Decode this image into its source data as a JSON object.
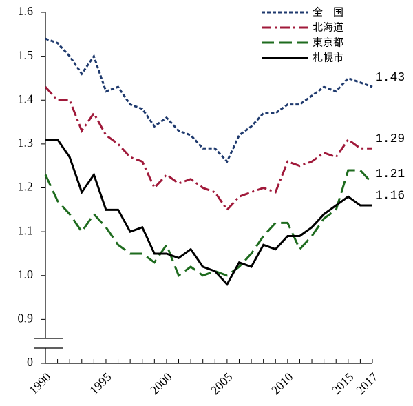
{
  "chart_data": {
    "type": "line",
    "x": [
      1990,
      1991,
      1992,
      1993,
      1994,
      1995,
      1996,
      1997,
      1998,
      1999,
      2000,
      2001,
      2002,
      2003,
      2004,
      2005,
      2006,
      2007,
      2008,
      2009,
      2010,
      2011,
      2012,
      2013,
      2014,
      2015,
      2016,
      2017
    ],
    "series": [
      {
        "name": "全　国",
        "color": "#1f3a6e",
        "linestyle": "dotted",
        "values": [
          1.54,
          1.53,
          1.5,
          1.46,
          1.5,
          1.42,
          1.43,
          1.39,
          1.38,
          1.34,
          1.36,
          1.33,
          1.32,
          1.29,
          1.29,
          1.26,
          1.32,
          1.34,
          1.37,
          1.37,
          1.39,
          1.39,
          1.41,
          1.43,
          1.42,
          1.45,
          1.44,
          1.43
        ]
      },
      {
        "name": "北海道",
        "color": "#a0193a",
        "linestyle": "dashdot",
        "values": [
          1.43,
          1.4,
          1.4,
          1.33,
          1.37,
          1.32,
          1.3,
          1.27,
          1.26,
          1.2,
          1.23,
          1.21,
          1.22,
          1.2,
          1.19,
          1.15,
          1.18,
          1.19,
          1.2,
          1.19,
          1.26,
          1.25,
          1.26,
          1.28,
          1.27,
          1.31,
          1.29,
          1.29
        ]
      },
      {
        "name": "東京都",
        "color": "#1e6b1e",
        "linestyle": "dashed",
        "values": [
          1.23,
          1.17,
          1.14,
          1.1,
          1.14,
          1.11,
          1.07,
          1.05,
          1.05,
          1.03,
          1.07,
          1.0,
          1.02,
          1.0,
          1.01,
          1.0,
          1.02,
          1.05,
          1.09,
          1.12,
          1.12,
          1.06,
          1.09,
          1.13,
          1.15,
          1.24,
          1.24,
          1.21
        ]
      },
      {
        "name": "札幌市",
        "color": "#000000",
        "linestyle": "solid",
        "values": [
          1.31,
          1.31,
          1.27,
          1.19,
          1.23,
          1.15,
          1.15,
          1.1,
          1.11,
          1.05,
          1.05,
          1.04,
          1.06,
          1.02,
          1.01,
          0.98,
          1.03,
          1.02,
          1.07,
          1.06,
          1.09,
          1.09,
          1.11,
          1.14,
          1.16,
          1.18,
          1.16,
          1.16
        ]
      }
    ],
    "xlim": [
      1990,
      2017
    ],
    "xticks": [
      1990,
      1995,
      2000,
      2005,
      2010,
      2015,
      2017
    ],
    "ylim": [
      0,
      1.6
    ],
    "axis_break": [
      0,
      0.8
    ],
    "yticks": [
      0,
      {
        "value": 0.9,
        "label": "0.9"
      },
      {
        "value": 1.0,
        "label": "1.0"
      },
      {
        "value": 1.1,
        "label": "1.1"
      },
      {
        "value": 1.2,
        "label": "1.2"
      },
      {
        "value": 1.3,
        "label": "1.3"
      },
      {
        "value": 1.4,
        "label": "1.4"
      },
      {
        "value": 1.5,
        "label": "1.5"
      },
      {
        "value": 1.6,
        "label": "1.6"
      }
    ],
    "end_labels": true,
    "legend": "upper right",
    "grid": false
  }
}
